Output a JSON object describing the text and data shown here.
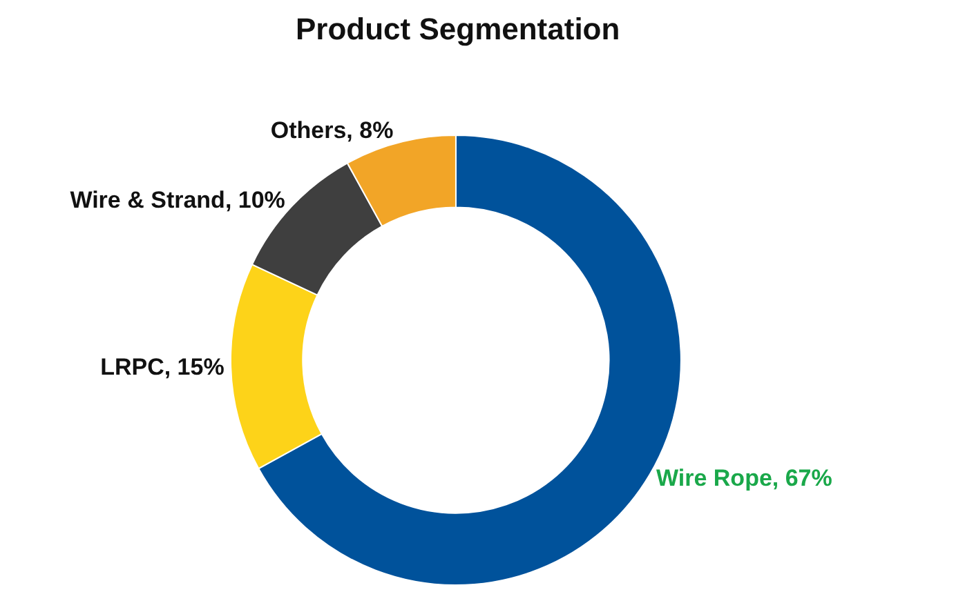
{
  "chart_data": {
    "type": "donut",
    "title": "Product Segmentation",
    "categories": [
      "Wire Rope",
      "LRPC",
      "Wire & Strand",
      "Others"
    ],
    "values": [
      67,
      15,
      10,
      8
    ],
    "value_labels": [
      "67%",
      "15%",
      "10%",
      "8%"
    ],
    "colors": [
      "#00529b",
      "#fdd319",
      "#3f3f3f",
      "#f2a527"
    ],
    "legend": false
  }
}
